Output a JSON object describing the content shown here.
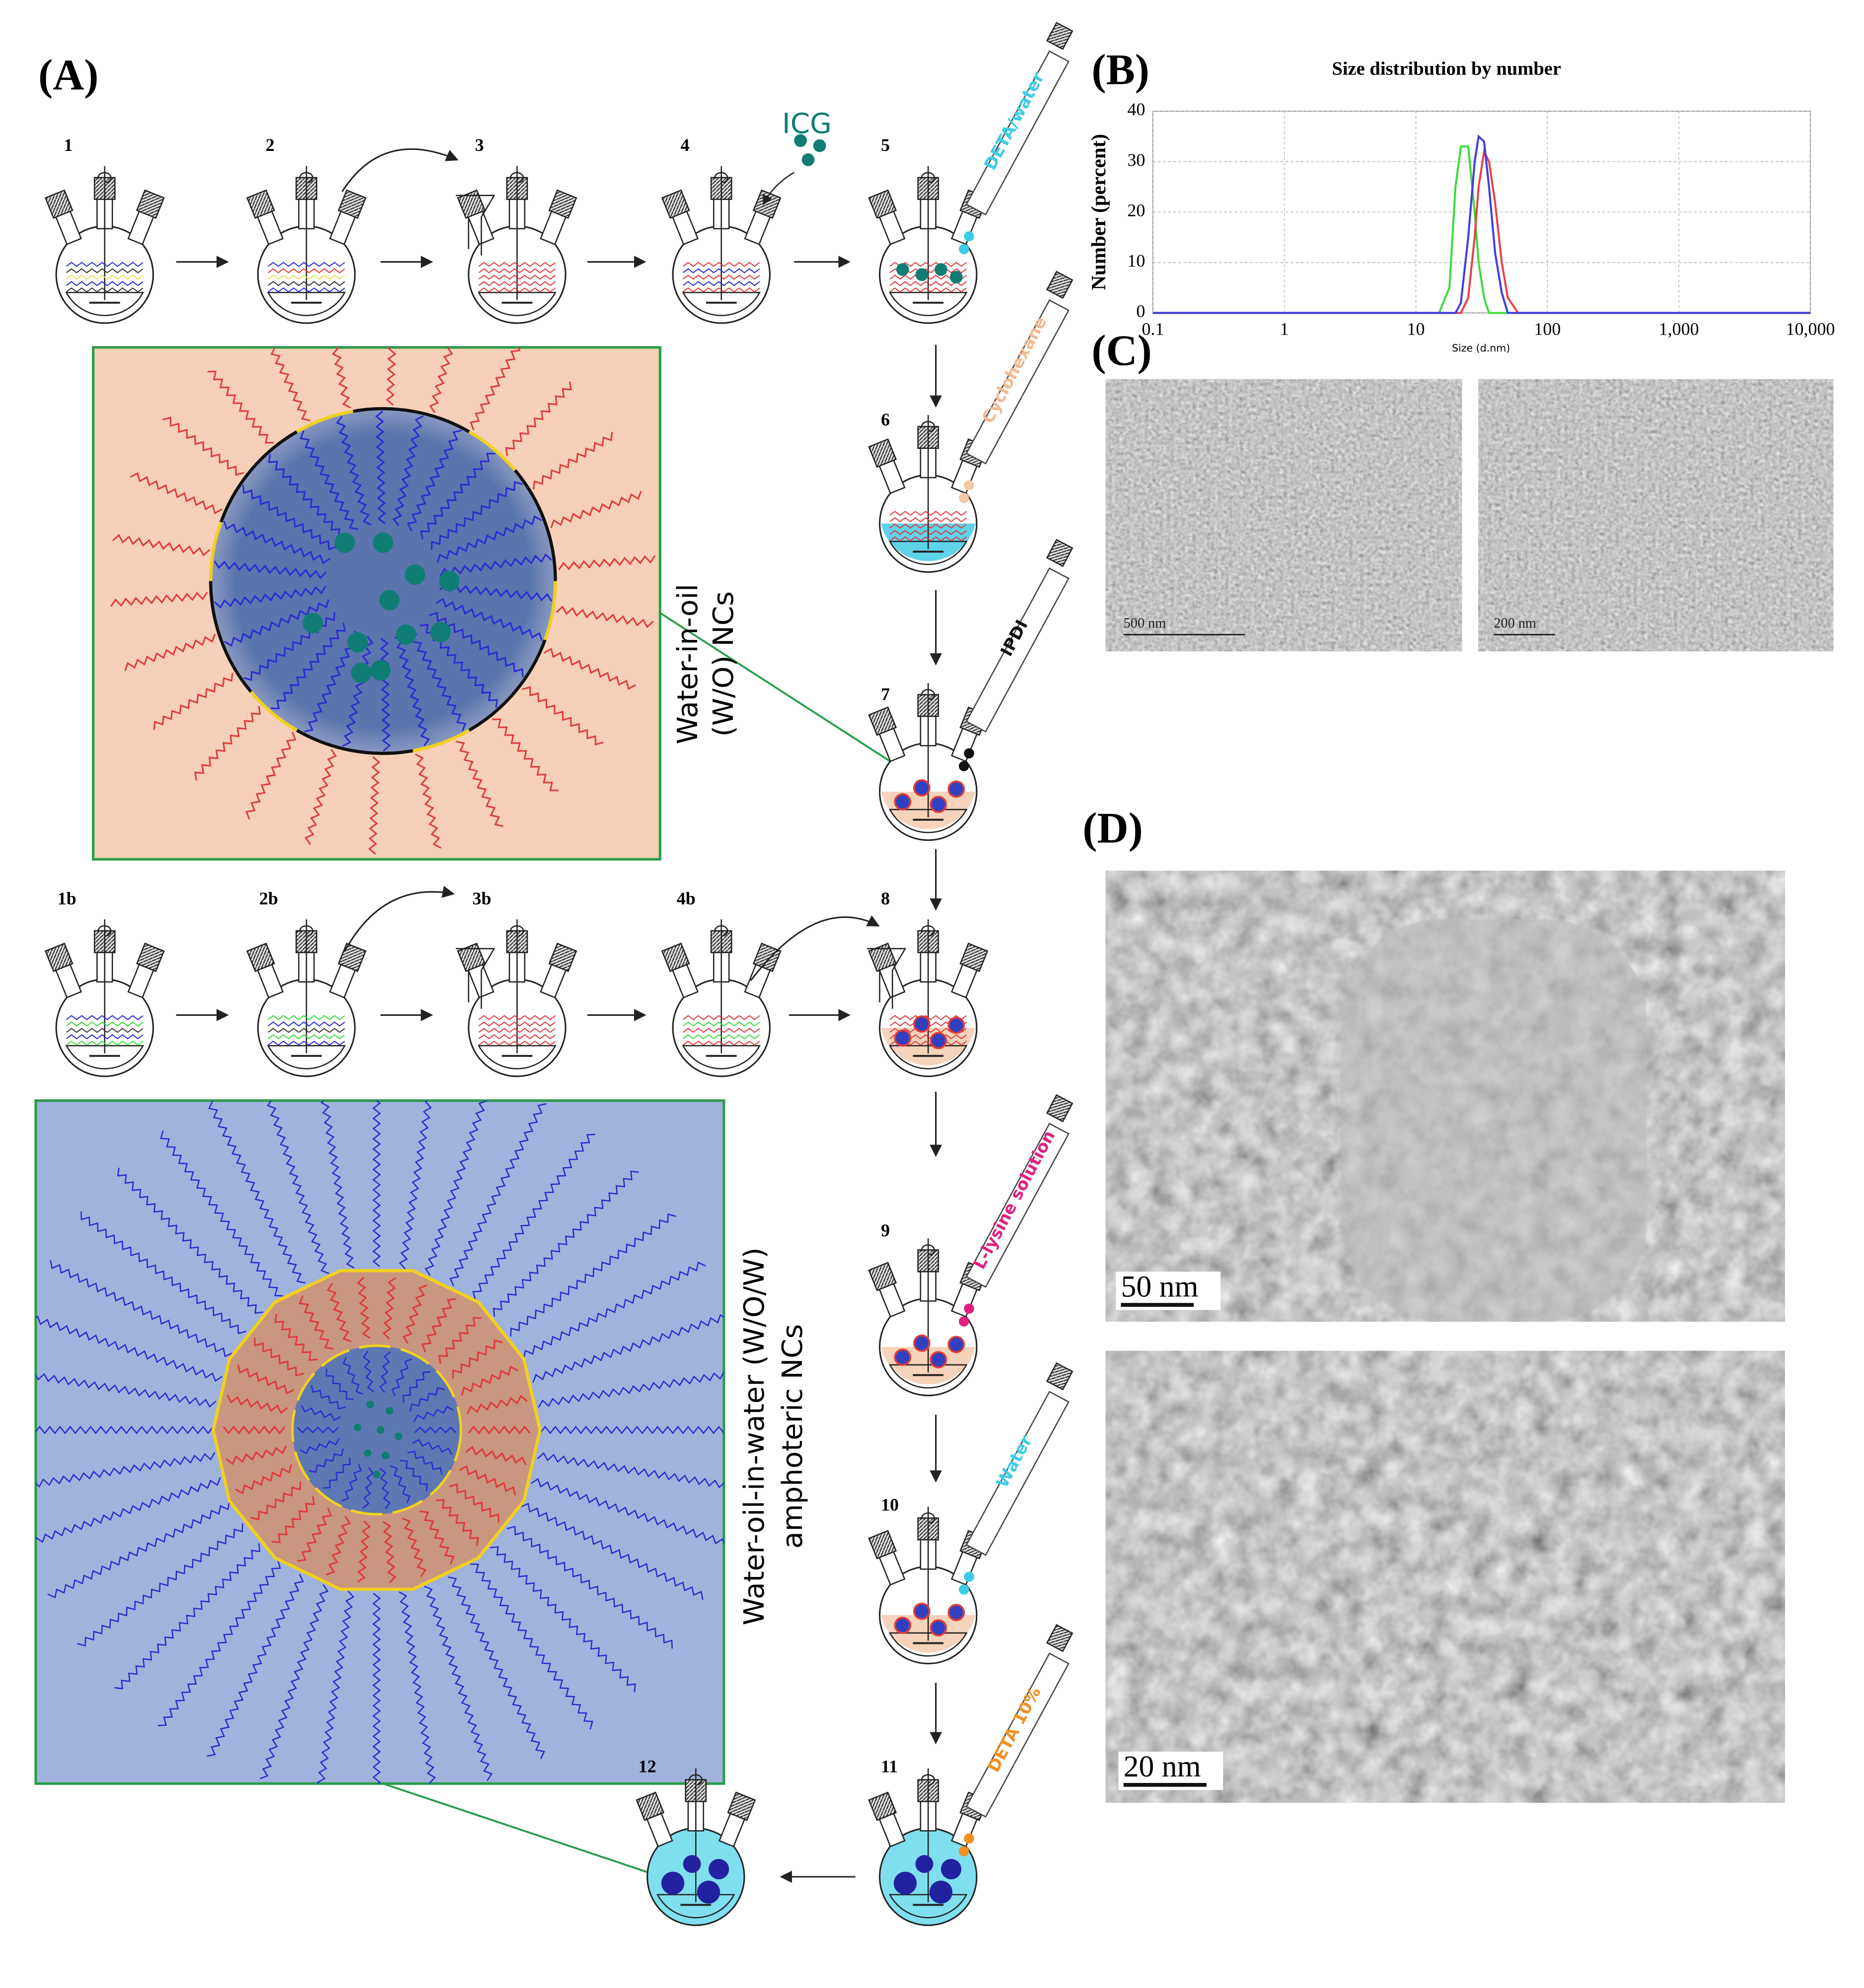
{
  "panel_labels": [
    "(A)",
    "(B)",
    "(C)",
    "(D)"
  ],
  "steps": [
    "1",
    "2",
    "3",
    "4",
    "5",
    "6",
    "7",
    "1b",
    "2b",
    "3b",
    "4b",
    "8",
    "9",
    "10",
    "11",
    "12"
  ],
  "reagents": [
    "ICG",
    "DETA/water",
    "Cyclohexane",
    "IPDI",
    "L-lysine solution",
    "Water",
    "DETA 10%"
  ],
  "insets": [
    [
      "Water-in-oil",
      "(W/O) NCs"
    ],
    [
      "Water-oil-in-water (W/O/W)",
      "amphoteric NCs"
    ]
  ],
  "scale_bars": [
    "500 nm",
    "200 nm",
    "50 nm",
    "20 nm"
  ],
  "chart_data": {
    "type": "line",
    "title": "Size distribution by number",
    "x_label": "Size (d.nm)",
    "y_label": "Number (percent)",
    "x_scale": "log",
    "grid": true,
    "x": [
      0.1,
      1,
      10,
      15,
      18,
      20,
      22,
      25,
      28,
      30,
      33,
      36,
      40,
      45,
      50,
      60,
      70,
      100,
      1000,
      10000
    ],
    "xlim": [
      0.1,
      10000
    ],
    "xticks": [
      0.1,
      1,
      10,
      100,
      {
        "value": 1000,
        "label": "1,000"
      },
      {
        "value": 10000,
        "label": "10,000"
      }
    ],
    "ylim": [
      0,
      40
    ],
    "yticks": [
      0,
      10,
      20,
      30,
      40
    ],
    "series": [
      {
        "color": "#3ddc3d",
        "values": [
          0,
          0,
          0,
          0,
          5,
          25,
          33,
          33,
          20,
          10,
          3,
          0,
          0,
          0,
          0,
          0,
          0,
          0,
          0,
          0
        ]
      },
      {
        "color": "#e8414a",
        "values": [
          0,
          0,
          0,
          0,
          0,
          0,
          0,
          3,
          15,
          25,
          32,
          30,
          22,
          10,
          3,
          0,
          0,
          0,
          0,
          0
        ]
      },
      {
        "color": "#3f3fe0",
        "values": [
          0,
          0,
          0,
          0,
          0,
          0,
          2,
          15,
          30,
          35,
          34,
          25,
          12,
          4,
          0,
          0,
          0,
          0,
          0,
          0
        ]
      }
    ]
  }
}
